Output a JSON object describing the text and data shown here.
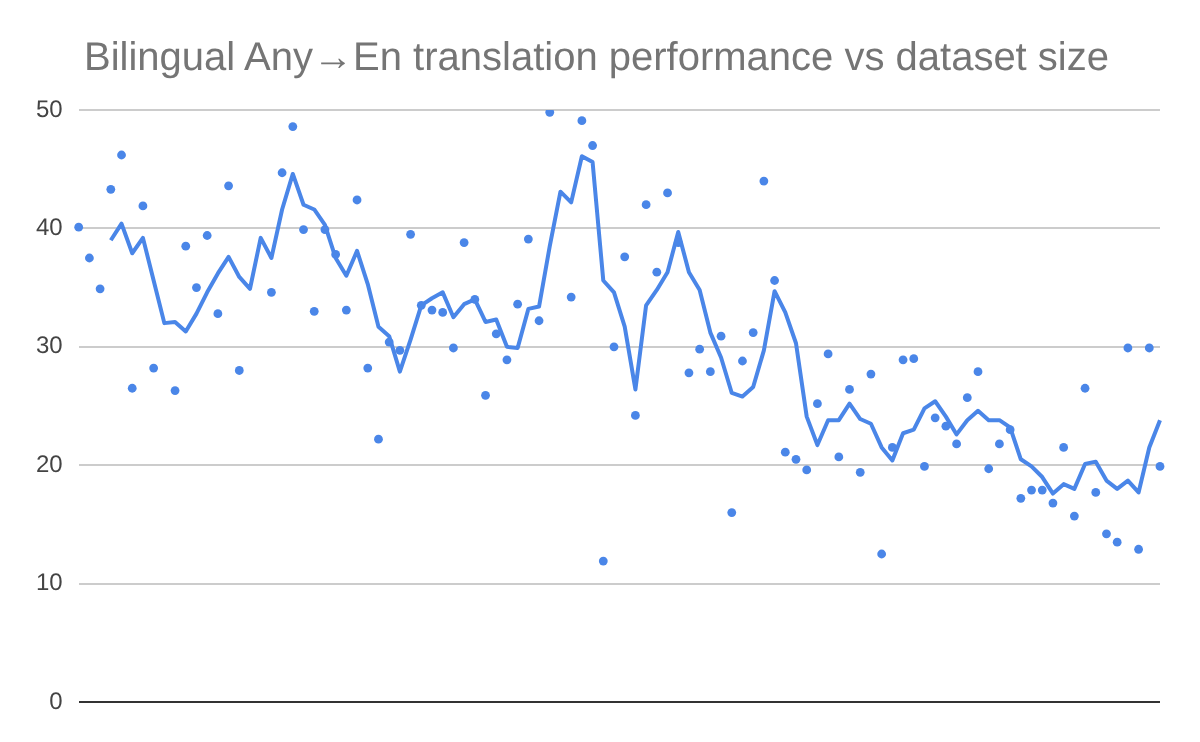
{
  "chart_data": {
    "type": "scatter",
    "title": "Bilingual Any→En translation performance vs dataset size",
    "categories": [
      null,
      null,
      null,
      null,
      null,
      null,
      null,
      null,
      null,
      null,
      null,
      null,
      null,
      null,
      null,
      null,
      null,
      null,
      null,
      null,
      null,
      null,
      null,
      null,
      null,
      null,
      null,
      null,
      null,
      null,
      null,
      null,
      null,
      null,
      null,
      null,
      null,
      null,
      null,
      null,
      null,
      null,
      null,
      null,
      null,
      null,
      null,
      null,
      null,
      null,
      null,
      null,
      null,
      null,
      null,
      null,
      null,
      null,
      null,
      null,
      null,
      null,
      null,
      null,
      null,
      null,
      null,
      null,
      null,
      null,
      null,
      null,
      null,
      null,
      null,
      null,
      null,
      null,
      null,
      null,
      null,
      null,
      null,
      null,
      null,
      null,
      null,
      null,
      null,
      null,
      null,
      null,
      null,
      null,
      null,
      null,
      null,
      null,
      null,
      null,
      null,
      null
    ],
    "series": [
      {
        "color": "#4a86e8",
        "values": [
          40.1,
          37.5,
          34.9,
          43.3,
          46.2,
          26.5,
          41.9,
          28.2,
          null,
          26.3,
          38.5,
          35.0,
          39.4,
          32.8,
          43.6,
          28.0,
          null,
          null,
          34.6,
          44.7,
          48.6,
          39.9,
          33.0,
          39.9,
          37.8,
          33.1,
          42.4,
          28.2,
          22.2,
          30.4,
          29.7,
          39.5,
          33.5,
          33.1,
          32.9,
          29.9,
          38.8,
          34.0,
          25.9,
          31.1,
          28.9,
          33.6,
          39.1,
          32.2,
          49.8,
          null,
          34.2,
          49.1,
          47.0,
          11.9,
          30.0,
          37.6,
          24.2,
          42.0,
          36.3,
          43.0,
          38.8,
          27.8,
          29.8,
          27.9,
          30.9,
          16.0,
          28.8,
          31.2,
          44.0,
          35.6,
          21.1,
          20.5,
          19.6,
          25.2,
          29.4,
          20.7,
          26.4,
          19.4,
          27.7,
          12.5,
          21.5,
          28.9,
          29.0,
          19.9,
          24.0,
          23.3,
          21.8,
          25.7,
          27.9,
          19.7,
          21.8,
          23.0,
          17.2,
          17.9,
          17.9,
          16.8,
          21.5,
          15.7,
          26.5,
          17.7,
          14.2,
          13.5,
          29.9,
          12.9,
          29.9,
          19.9
        ]
      },
      {
        "type": "line",
        "color": "#4a86e8",
        "values": [
          null,
          null,
          null,
          39.0,
          40.4,
          37.9,
          39.2,
          35.6,
          32.0,
          32.1,
          31.3,
          32.8,
          34.6,
          36.2,
          37.6,
          35.9,
          34.9,
          39.2,
          37.5,
          41.6,
          44.6,
          42.0,
          41.6,
          40.3,
          37.5,
          36.0,
          38.1,
          35.3,
          31.7,
          30.9,
          27.9,
          30.6,
          33.5,
          34.1,
          34.6,
          32.5,
          33.6,
          34.0,
          32.1,
          32.3,
          30.0,
          29.9,
          33.2,
          33.4,
          38.5,
          43.1,
          42.2,
          46.1,
          45.6,
          35.6,
          34.6,
          31.7,
          26.4,
          33.5,
          34.8,
          36.3,
          39.7,
          36.3,
          34.8,
          31.2,
          29.1,
          26.1,
          25.8,
          26.6,
          29.7,
          34.7,
          32.9,
          30.3,
          24.1,
          21.7,
          23.8,
          23.8,
          25.2,
          23.9,
          23.5,
          21.5,
          20.4,
          22.7,
          23.0,
          24.8,
          25.4,
          24.1,
          22.6,
          23.8,
          24.6,
          23.8,
          23.8,
          23.2,
          20.5,
          19.9,
          19.0,
          17.6,
          18.4,
          18.0,
          20.1,
          20.3,
          18.7,
          18.0,
          18.7,
          17.7,
          21.5,
          23.8
        ]
      }
    ],
    "ylim": [
      0,
      50
    ],
    "yticks": [
      0,
      10,
      20,
      30,
      40,
      50
    ],
    "grid": "y",
    "legend": false,
    "tick_labels": "y"
  }
}
